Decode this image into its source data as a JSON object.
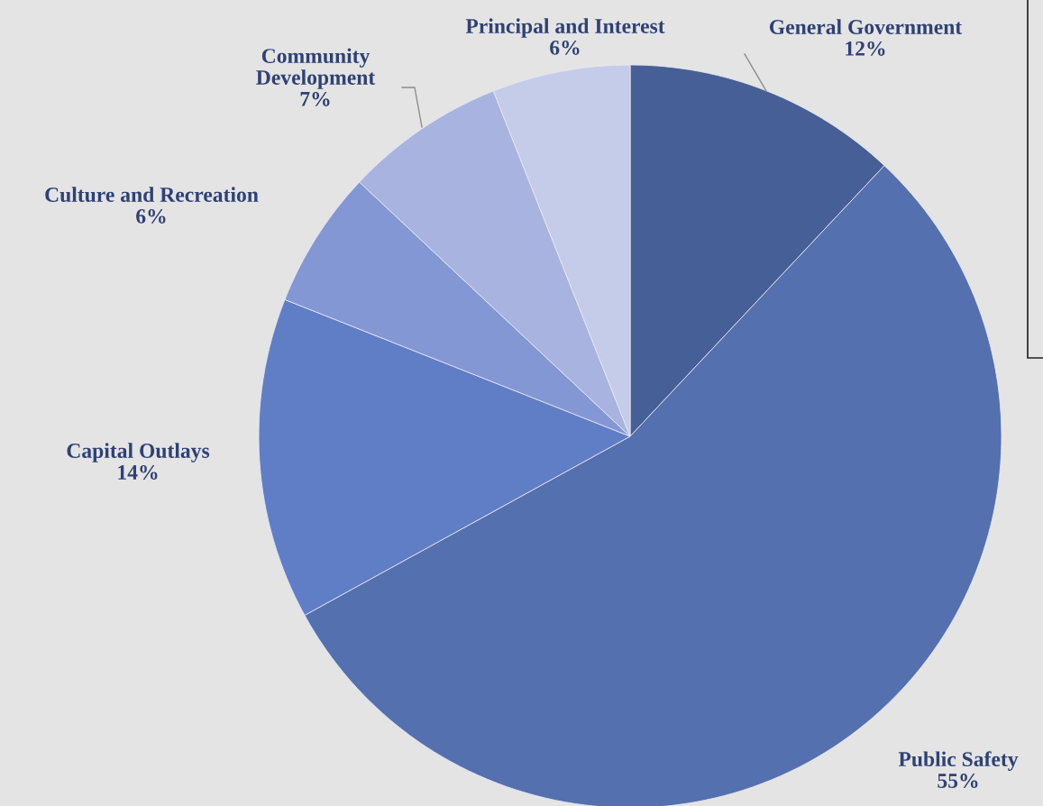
{
  "chart_data": {
    "type": "pie",
    "categories": [
      "General Government",
      "Public Safety",
      "Capital Outlays",
      "Culture and Recreation",
      "Community\nDevelopment",
      "Principal and Interest"
    ],
    "values": [
      12,
      55,
      14,
      6,
      7,
      6
    ],
    "value_labels": [
      "12%",
      "55%",
      "14%",
      "6%",
      "7%",
      "6%"
    ],
    "colors": [
      "#465f96",
      "#5470ae",
      "#607ec6",
      "#8297d3",
      "#a8b4df",
      "#c5cce9"
    ]
  }
}
